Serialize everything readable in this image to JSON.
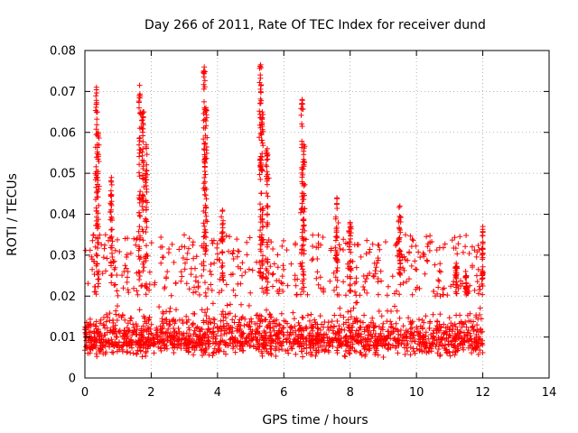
{
  "chart_data": {
    "type": "scatter",
    "title": "Day 266 of 2011, Rate Of TEC Index for receiver dund",
    "xlabel": "GPS time / hours",
    "ylabel": "ROTI / TECUs",
    "xlim": [
      0,
      14
    ],
    "ylim": [
      0,
      0.08
    ],
    "x_ticks": [
      "0",
      "2",
      "4",
      "6",
      "8",
      "10",
      "12",
      "14"
    ],
    "y_ticks": [
      "0",
      "0.01",
      "0.02",
      "0.03",
      "0.04",
      "0.05",
      "0.06",
      "0.07",
      "0.08"
    ],
    "grid": true,
    "marker": "+",
    "series": [
      {
        "name": "ROTI",
        "color": "#ff0000",
        "x_range": [
          0,
          12
        ],
        "baseline_band": [
          0.005,
          0.02
        ],
        "peaks": [
          {
            "x": 0.35,
            "y": 0.071
          },
          {
            "x": 0.4,
            "y": 0.06
          },
          {
            "x": 0.8,
            "y": 0.049
          },
          {
            "x": 1.65,
            "y": 0.0715
          },
          {
            "x": 1.75,
            "y": 0.065
          },
          {
            "x": 1.85,
            "y": 0.057
          },
          {
            "x": 3.6,
            "y": 0.076
          },
          {
            "x": 3.65,
            "y": 0.066
          },
          {
            "x": 4.15,
            "y": 0.041
          },
          {
            "x": 5.3,
            "y": 0.0765
          },
          {
            "x": 5.35,
            "y": 0.065
          },
          {
            "x": 5.5,
            "y": 0.056
          },
          {
            "x": 6.55,
            "y": 0.068
          },
          {
            "x": 6.6,
            "y": 0.057
          },
          {
            "x": 7.6,
            "y": 0.044
          },
          {
            "x": 8.0,
            "y": 0.038
          },
          {
            "x": 9.5,
            "y": 0.042
          },
          {
            "x": 11.2,
            "y": 0.028
          },
          {
            "x": 11.5,
            "y": 0.025
          },
          {
            "x": 12.0,
            "y": 0.037
          }
        ]
      }
    ]
  }
}
